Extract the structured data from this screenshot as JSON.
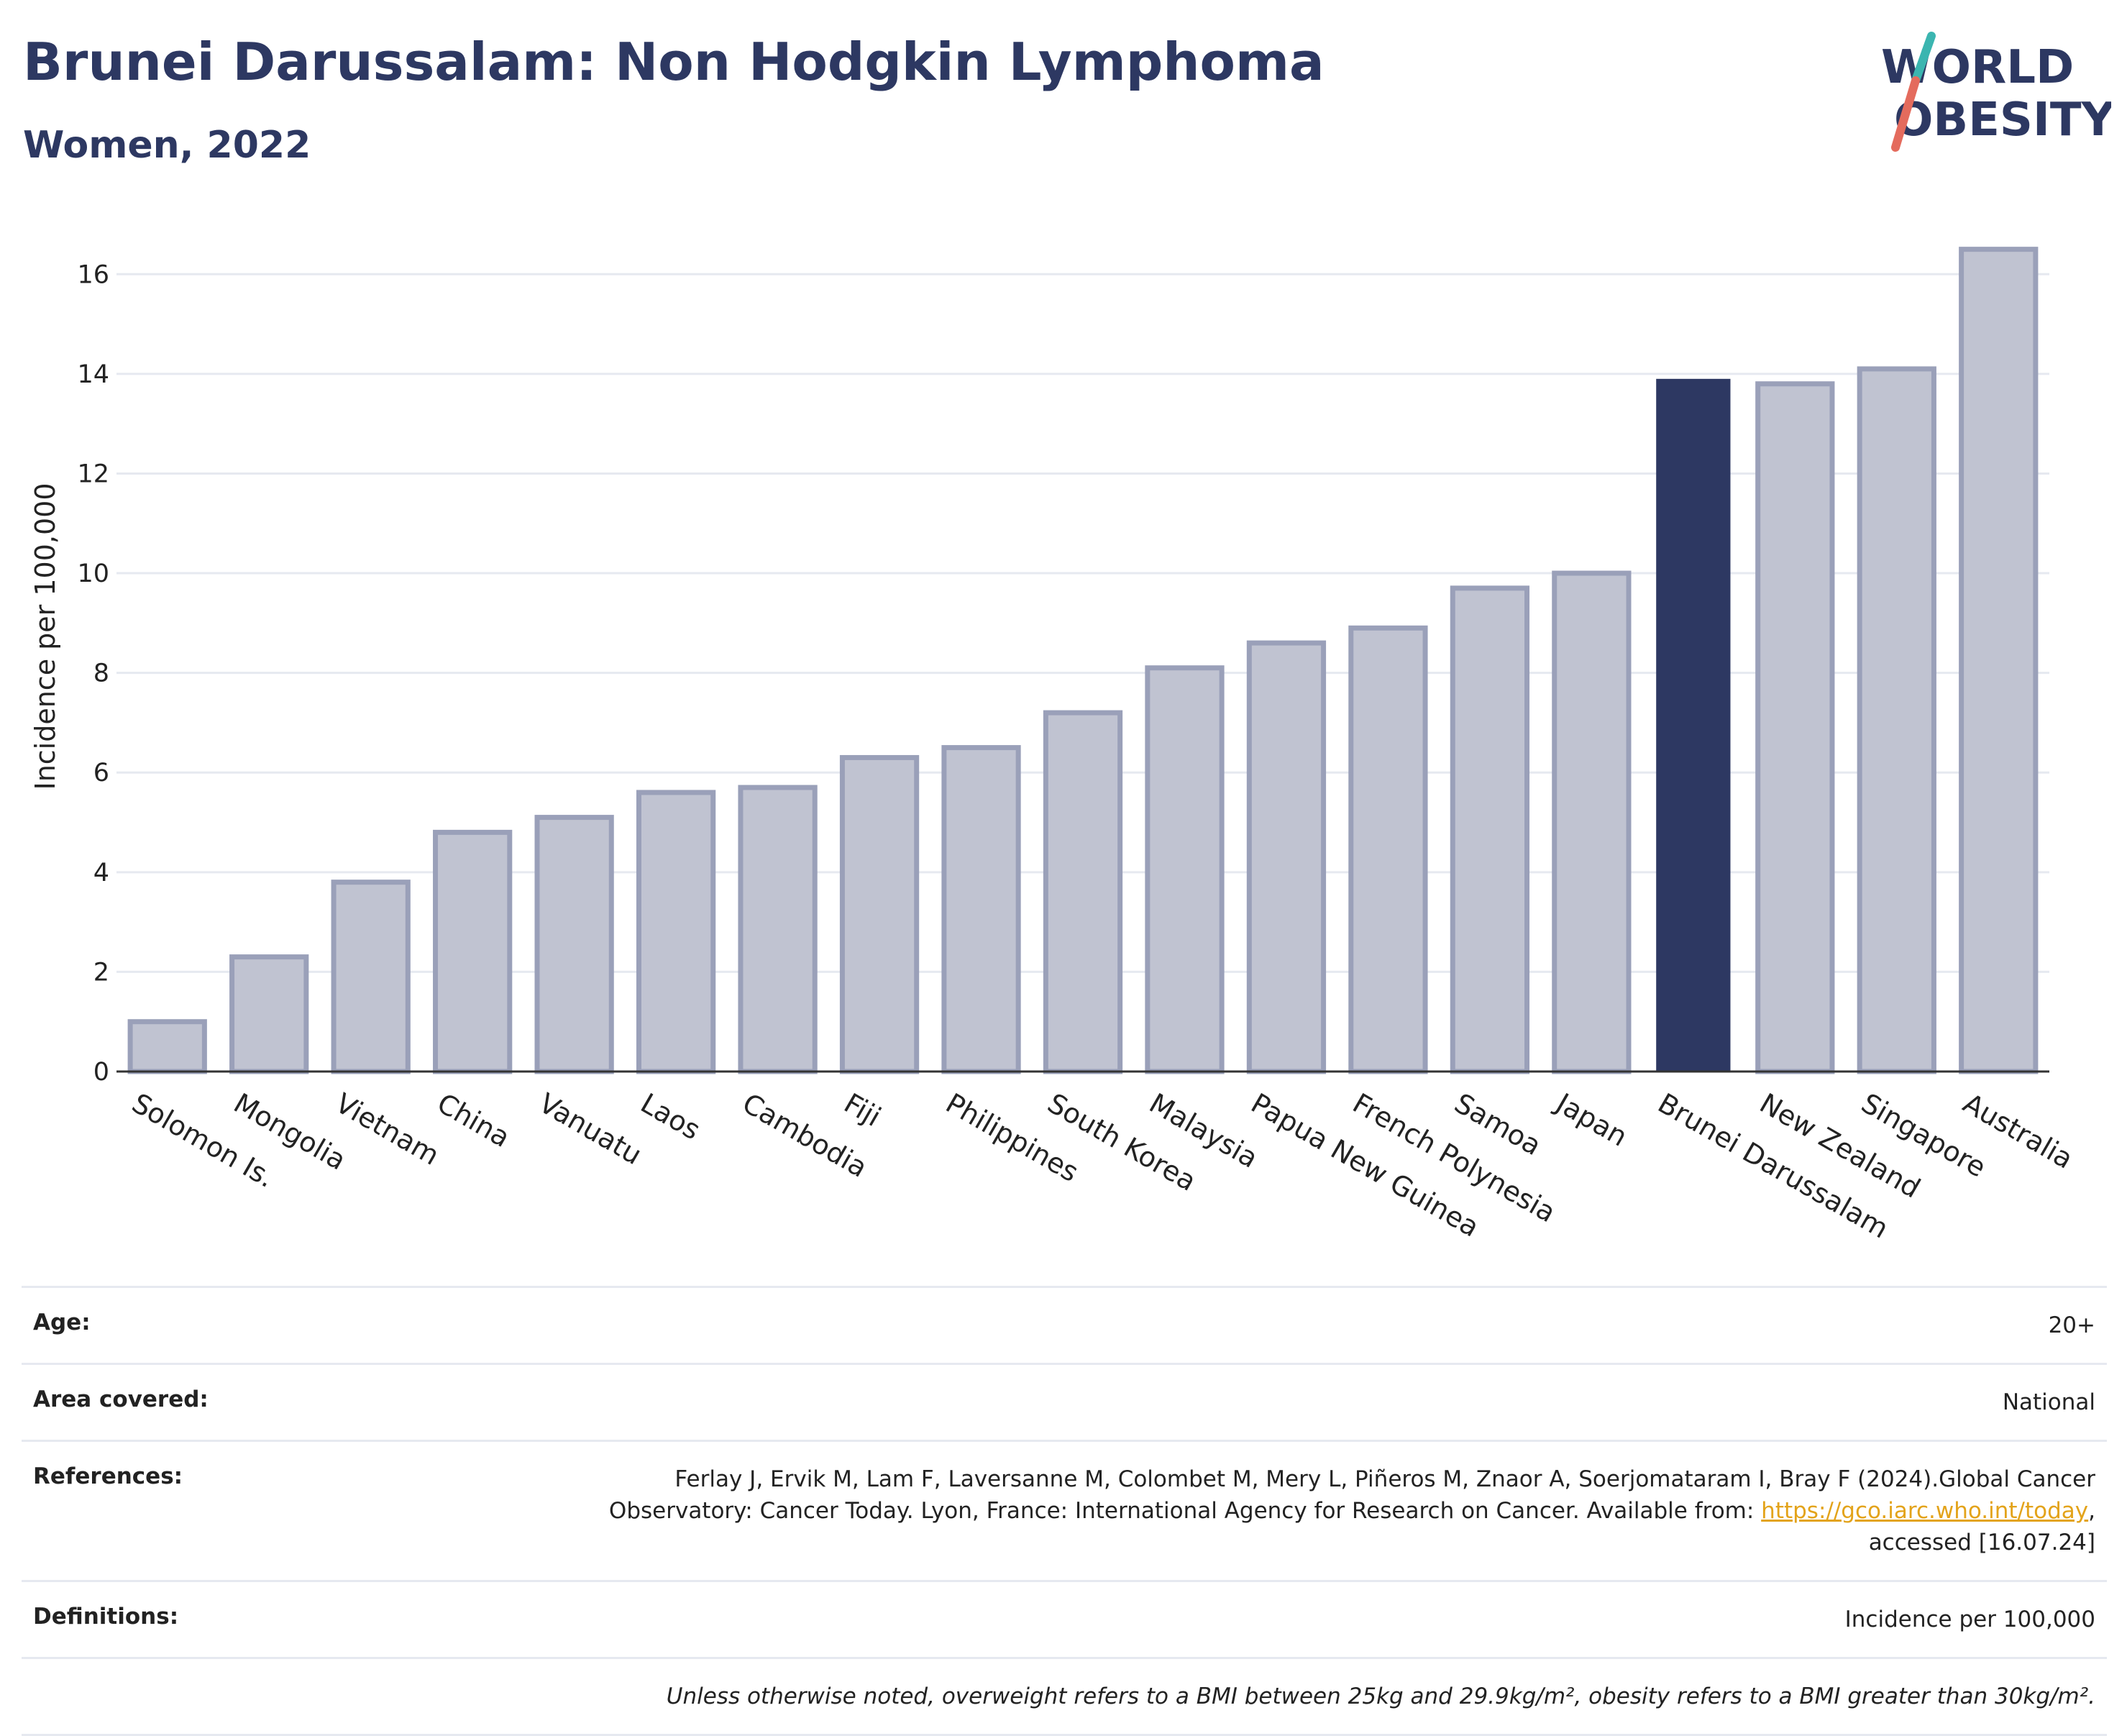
{
  "title": "Brunei Darussalam: Non Hodgkin Lymphoma",
  "subtitle": "Women, 2022",
  "logo": {
    "line1": "WORLD",
    "line2": "OBESITY"
  },
  "colors": {
    "highlight": "#2d3862",
    "bar": "#c0c3d1",
    "bar_edge": "#9aa0b9",
    "grid": "#e6e9f0"
  },
  "chart_data": {
    "type": "bar",
    "ylabel": "Incidence per 100,000",
    "ylim": [
      0,
      17
    ],
    "yticks": [
      0,
      2,
      4,
      6,
      8,
      10,
      12,
      14,
      16
    ],
    "highlight": "Brunei Darussalam",
    "categories": [
      "Solomon Is.",
      "Mongolia",
      "Vietnam",
      "China",
      "Vanuatu",
      "Laos",
      "Cambodia",
      "Fiji",
      "Philippines",
      "South Korea",
      "Malaysia",
      "Papua New Guinea",
      "French Polynesia",
      "Samoa",
      "Japan",
      "Brunei Darussalam",
      "New Zealand",
      "Singapore",
      "Australia"
    ],
    "values": [
      1.0,
      2.3,
      3.8,
      4.8,
      5.1,
      5.6,
      5.7,
      6.3,
      6.5,
      7.2,
      8.1,
      8.6,
      8.9,
      9.7,
      10.0,
      13.9,
      13.8,
      14.1,
      16.5
    ],
    "grid": true
  },
  "info": {
    "age_label": "Age:",
    "age_value": "20+",
    "area_label": "Area covered:",
    "area_value": "National",
    "ref_label": "References:",
    "ref_line1": "Ferlay J, Ervik M, Lam F, Laversanne M, Colombet M, Mery L, Piñeros M, Znaor A, Soerjomataram I, Bray F (2024).Global Cancer",
    "ref_line2": "Observatory: Cancer Today. Lyon, France: International Agency for Research on Cancer. Available from:",
    "ref_link": "https://gco.iarc.who.int/today",
    "ref_line2_end": ",",
    "ref_line3": "accessed [16.07.24]",
    "def_label": "Definitions:",
    "def_value": "Incidence per 100,000",
    "note": "Unless otherwise noted, overweight refers to a BMI between 25kg and 29.9kg/m², obesity refers to a BMI greater than 30kg/m²."
  }
}
